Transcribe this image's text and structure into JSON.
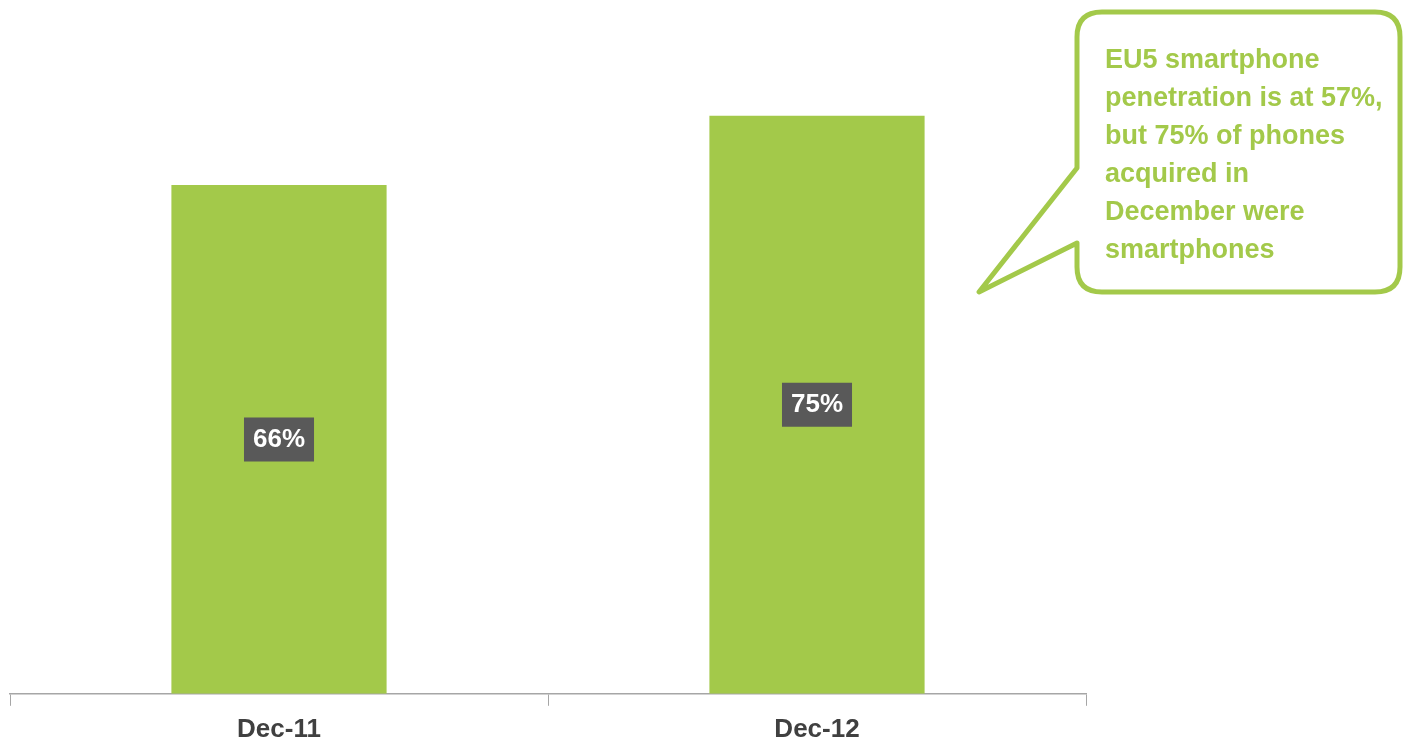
{
  "chart_data": {
    "type": "bar",
    "categories": [
      "Dec-11",
      "Dec-12"
    ],
    "values": [
      66,
      75
    ],
    "value_labels": [
      "66%",
      "75%"
    ],
    "color": "#a3c94a",
    "annotations": [
      "EU5 smartphone penetration is at 57%, but 75% of phones acquired in December were smartphones"
    ]
  }
}
